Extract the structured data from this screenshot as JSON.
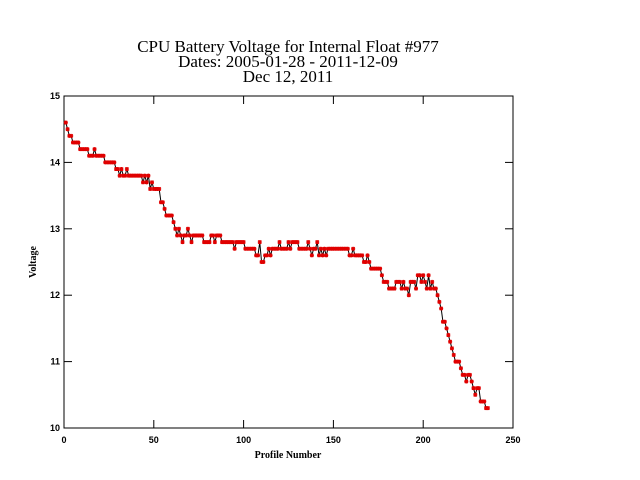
{
  "chart_data": {
    "type": "scatter-line",
    "title": [
      "CPU Battery Voltage for Internal Float #977",
      "Dates:  2005-01-28 -  2011-12-09",
      "Dec 12, 2011"
    ],
    "xlabel": "Profile Number",
    "ylabel": "Voltage",
    "xlim": [
      0,
      250
    ],
    "xticks": [
      0,
      50,
      100,
      150,
      200,
      250
    ],
    "ylim": [
      10,
      15
    ],
    "yticks": [
      10,
      11,
      12,
      13,
      14,
      15
    ],
    "line_color": "#000000",
    "marker_color": "#e00000",
    "x": [
      1,
      2,
      3,
      4,
      5,
      6,
      7,
      8,
      9,
      10,
      11,
      12,
      13,
      14,
      15,
      16,
      17,
      18,
      19,
      20,
      21,
      22,
      23,
      24,
      25,
      26,
      27,
      28,
      29,
      30,
      31,
      32,
      33,
      34,
      35,
      36,
      37,
      38,
      39,
      40,
      41,
      42,
      43,
      44,
      45,
      46,
      47,
      48,
      49,
      50,
      51,
      52,
      53,
      54,
      55,
      56,
      57,
      58,
      59,
      60,
      61,
      62,
      63,
      64,
      65,
      66,
      67,
      68,
      69,
      70,
      71,
      72,
      73,
      74,
      75,
      76,
      77,
      78,
      79,
      80,
      81,
      82,
      83,
      84,
      85,
      86,
      87,
      88,
      89,
      90,
      91,
      92,
      93,
      94,
      95,
      96,
      97,
      98,
      99,
      100,
      101,
      102,
      103,
      104,
      105,
      106,
      107,
      108,
      109,
      110,
      111,
      112,
      113,
      114,
      115,
      116,
      117,
      118,
      119,
      120,
      121,
      122,
      123,
      124,
      125,
      126,
      127,
      128,
      129,
      130,
      131,
      132,
      133,
      134,
      135,
      136,
      137,
      138,
      139,
      140,
      141,
      142,
      143,
      144,
      145,
      146,
      147,
      148,
      149,
      150,
      151,
      152,
      153,
      154,
      155,
      156,
      157,
      158,
      159,
      160,
      161,
      162,
      163,
      164,
      165,
      166,
      167,
      168,
      169,
      170,
      171,
      172,
      173,
      174,
      175,
      176,
      177,
      178,
      179,
      180,
      181,
      182,
      183,
      184,
      185,
      186,
      187,
      188,
      189,
      190,
      191,
      192,
      193,
      194,
      195,
      196,
      197,
      198,
      199,
      200,
      201,
      202,
      203,
      204,
      205,
      206,
      207,
      208,
      209,
      210,
      211,
      212,
      213,
      214,
      215,
      216,
      217,
      218,
      219,
      220,
      221,
      222,
      223,
      224,
      225,
      226,
      227,
      228,
      229,
      230,
      231,
      232,
      233,
      234,
      235,
      236
    ],
    "values": [
      14.6,
      14.5,
      14.4,
      14.4,
      14.3,
      14.3,
      14.3,
      14.3,
      14.2,
      14.2,
      14.2,
      14.2,
      14.2,
      14.1,
      14.1,
      14.1,
      14.2,
      14.1,
      14.1,
      14.1,
      14.1,
      14.1,
      14.0,
      14.0,
      14.0,
      14.0,
      14.0,
      14.0,
      13.9,
      13.9,
      13.8,
      13.9,
      13.8,
      13.8,
      13.9,
      13.8,
      13.8,
      13.8,
      13.8,
      13.8,
      13.8,
      13.8,
      13.8,
      13.7,
      13.8,
      13.7,
      13.8,
      13.6,
      13.7,
      13.6,
      13.6,
      13.6,
      13.6,
      13.4,
      13.4,
      13.3,
      13.2,
      13.2,
      13.2,
      13.2,
      13.1,
      13.0,
      12.9,
      13.0,
      12.9,
      12.8,
      12.9,
      12.9,
      13.0,
      12.9,
      12.8,
      12.9,
      12.9,
      12.9,
      12.9,
      12.9,
      12.9,
      12.8,
      12.8,
      12.8,
      12.8,
      12.9,
      12.9,
      12.8,
      12.9,
      12.9,
      12.9,
      12.8,
      12.8,
      12.8,
      12.8,
      12.8,
      12.8,
      12.8,
      12.7,
      12.8,
      12.8,
      12.8,
      12.8,
      12.8,
      12.7,
      12.7,
      12.7,
      12.7,
      12.7,
      12.7,
      12.6,
      12.6,
      12.8,
      12.5,
      12.5,
      12.6,
      12.6,
      12.7,
      12.6,
      12.7,
      12.7,
      12.7,
      12.7,
      12.8,
      12.7,
      12.7,
      12.7,
      12.7,
      12.8,
      12.7,
      12.8,
      12.8,
      12.8,
      12.8,
      12.7,
      12.7,
      12.7,
      12.7,
      12.7,
      12.8,
      12.7,
      12.6,
      12.7,
      12.7,
      12.8,
      12.6,
      12.7,
      12.6,
      12.7,
      12.6,
      12.7,
      12.7,
      12.7,
      12.7,
      12.7,
      12.7,
      12.7,
      12.7,
      12.7,
      12.7,
      12.7,
      12.7,
      12.6,
      12.6,
      12.7,
      12.6,
      12.6,
      12.6,
      12.6,
      12.6,
      12.5,
      12.5,
      12.6,
      12.5,
      12.4,
      12.4,
      12.4,
      12.4,
      12.4,
      12.4,
      12.3,
      12.2,
      12.2,
      12.2,
      12.1,
      12.1,
      12.1,
      12.1,
      12.2,
      12.2,
      12.2,
      12.1,
      12.2,
      12.1,
      12.1,
      12.0,
      12.2,
      12.2,
      12.2,
      12.1,
      12.3,
      12.3,
      12.2,
      12.3,
      12.2,
      12.1,
      12.3,
      12.1,
      12.2,
      12.1,
      12.1,
      12.0,
      11.9,
      11.8,
      11.6,
      11.6,
      11.5,
      11.4,
      11.3,
      11.2,
      11.1,
      11.0,
      11.0,
      11.0,
      10.9,
      10.8,
      10.8,
      10.7,
      10.8,
      10.8,
      10.7,
      10.6,
      10.5,
      10.6,
      10.6,
      10.4,
      10.4,
      10.4,
      10.3,
      10.3
    ]
  }
}
